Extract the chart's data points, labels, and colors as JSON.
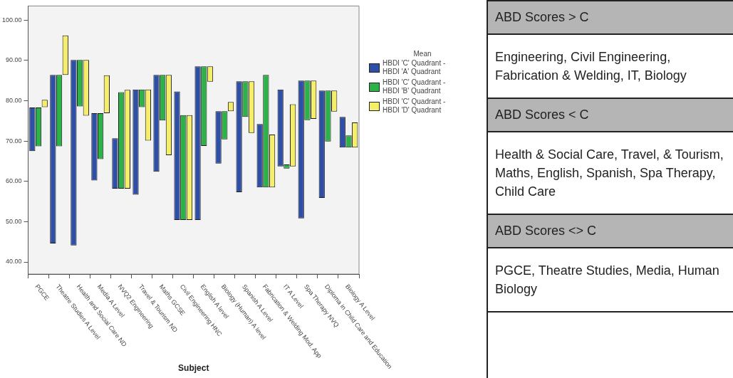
{
  "chart_data": [
    {
      "type": "bar",
      "xlabel": "Subject",
      "legend_title": "Mean",
      "legend": "right",
      "grid": false,
      "categories": [
        "PGCE",
        "Theatre Studies A Level",
        "Health and Social Care ND",
        "Media A Level",
        "NVQ2 Engineering",
        "Travel & Tourism ND",
        "Maths GCSE",
        "Civil Engineering HNC",
        "English A level",
        "Biology (Human) A level",
        "Spanish A Level",
        "Fabrication & Welding Mod. App",
        "IT A Level",
        "Spa Therapy NVQ",
        "Diploma in Child Care and Education",
        "Biology A Level"
      ],
      "ylim": [
        37,
        103.5
      ],
      "yticks": [
        {
          "value": 40,
          "label": "40.00"
        },
        {
          "value": 50,
          "label": "50.00"
        },
        {
          "value": 60,
          "label": "60.00"
        },
        {
          "value": 70,
          "label": "70.00"
        },
        {
          "value": 80,
          "label": "80.00"
        },
        {
          "value": 90,
          "label": "90.00"
        },
        {
          "value": 100,
          "label": "100.00"
        }
      ],
      "series": [
        {
          "name": "HBDI 'C' Quadrant - HBDI 'A' Quadrant",
          "color": "#2e4fa6",
          "base": [
            67.5,
            44.6,
            44.1,
            60.2,
            58.2,
            56.7,
            62.4,
            50.4,
            50.4,
            64.4,
            57.3,
            58.5,
            63.7,
            50.8,
            55.9,
            68.4
          ],
          "values": [
            10.8,
            41.8,
            46.0,
            16.7,
            12.5,
            26.1,
            24.0,
            31.9,
            38.1,
            13.0,
            27.5,
            15.7,
            19.1,
            34.2,
            26.6,
            7.6
          ]
        },
        {
          "name": "HBDI 'C' Quadrant - HBDI 'B' Quadrant",
          "color": "#2db24a",
          "base": [
            68.7,
            68.7,
            78.6,
            65.5,
            58.2,
            78.4,
            75.1,
            50.4,
            68.8,
            70.4,
            76.0,
            58.5,
            63.2,
            75.2,
            69.9,
            68.4
          ],
          "values": [
            9.6,
            17.7,
            11.5,
            11.4,
            23.9,
            4.4,
            11.3,
            26.0,
            19.7,
            7.0,
            8.8,
            27.9,
            1.0,
            9.8,
            12.6,
            3.0
          ]
        },
        {
          "name": "HBDI 'C' Quadrant - HBDI 'D' Quadrant",
          "color": "#f5ee6a",
          "base": [
            78.4,
            86.4,
            76.3,
            76.9,
            58.2,
            70.1,
            66.5,
            50.4,
            84.7,
            77.4,
            72.0,
            58.5,
            63.7,
            75.5,
            77.3,
            68.4
          ],
          "values": [
            1.8,
            9.8,
            13.8,
            9.4,
            24.5,
            12.7,
            19.9,
            26.0,
            3.8,
            2.3,
            12.8,
            13.1,
            15.4,
            9.5,
            5.2,
            6.2
          ]
        }
      ]
    },
    {
      "type": "other",
      "annotations": [
        "ABD Scores > C",
        "Engineering, Civil Engineering, Fabrication & Welding, IT, Biology",
        "ABD Scores < C",
        "Health & Social Care, Travel, & Tourism, Maths, English, Spanish, Spa Therapy, Child Care",
        "ABD Scores <> C",
        "PGCE, Theatre Studies, Media, Human Biology"
      ]
    }
  ]
}
